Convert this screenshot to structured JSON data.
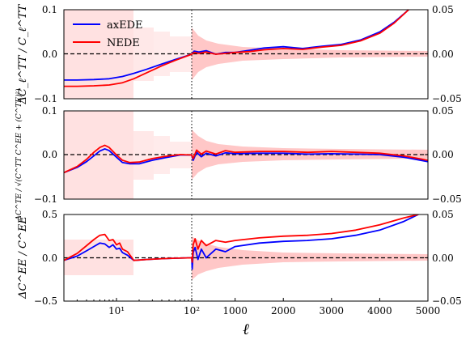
{
  "chart_data": {
    "type": "line",
    "x_axis": {
      "label": "ℓ",
      "log_region": {
        "range": [
          2,
          100
        ],
        "ticks": [
          {
            "value": 10,
            "label": "10¹"
          },
          {
            "value": 100,
            "label": "10²"
          }
        ]
      },
      "linear_region": {
        "range": [
          100,
          5000
        ],
        "ticks": [
          1000,
          2000,
          3000,
          4000,
          5000
        ]
      },
      "divider_at": 100
    },
    "legend": {
      "placement": "top-left",
      "entries": [
        {
          "name": "axEDE",
          "color": "#0000ff"
        },
        {
          "name": "NEDE",
          "color": "#ff0000"
        }
      ]
    },
    "colors": {
      "axEDE": "#0000ff",
      "NEDE": "#ff0000",
      "error_band": "#ffbdbd",
      "zero_line": "#000000"
    },
    "panels": [
      {
        "id": "TT",
        "ylabel": "ΔC_ℓ^TT / C_ℓ^TT",
        "ylim": [
          -0.1,
          0.1
        ],
        "yticks": [
          "0.1",
          "0.0",
          "−0.1"
        ],
        "right_ylim": [
          -0.05,
          0.05
        ],
        "right_yticks": [
          "0.05",
          "0.00",
          "−0.05"
        ],
        "series": [
          {
            "name": "axEDE",
            "x": [
              2,
              3,
              5,
              8,
              12,
              17,
              25,
              40,
              60,
              100,
              150,
              250,
              400,
              600,
              800,
              1000,
              1300,
              1600,
              2000,
              2400,
              2800,
              3200,
              3600,
              4000,
              4300,
              4600
            ],
            "y": [
              -0.058,
              -0.058,
              -0.057,
              -0.055,
              -0.05,
              -0.043,
              -0.034,
              -0.022,
              -0.012,
              0.0,
              0.007,
              0.005,
              0.008,
              0.0,
              0.004,
              0.004,
              0.009,
              0.014,
              0.017,
              0.013,
              0.018,
              0.022,
              0.032,
              0.05,
              0.072,
              0.1
            ]
          },
          {
            "name": "NEDE",
            "x": [
              2,
              3,
              5,
              8,
              12,
              17,
              25,
              40,
              60,
              100,
              150,
              250,
              400,
              600,
              800,
              1000,
              1300,
              1600,
              2000,
              2400,
              2800,
              3200,
              3600,
              4000,
              4300,
              4600
            ],
            "y": [
              -0.072,
              -0.072,
              -0.071,
              -0.069,
              -0.064,
              -0.055,
              -0.042,
              -0.026,
              -0.014,
              0.0,
              0.004,
              0.002,
              0.005,
              0.0,
              0.002,
              0.004,
              0.006,
              0.01,
              0.013,
              0.011,
              0.016,
              0.02,
              0.03,
              0.047,
              0.07,
              0.1
            ]
          }
        ]
      },
      {
        "id": "TE",
        "ylabel": "ΔC^TE / √(C^TT C^EE + (C^TE)²)",
        "ylim": [
          -0.1,
          0.1
        ],
        "yticks": [
          "0.1",
          "0.0",
          "−0.1"
        ],
        "right_ylim": [
          -0.05,
          0.05
        ],
        "right_yticks": [
          "0.05",
          "0.00",
          "−0.05"
        ],
        "series": [
          {
            "name": "axEDE",
            "x": [
              2,
              3,
              4,
              5,
              6,
              7,
              8,
              10,
              12,
              15,
              20,
              30,
              45,
              70,
              100,
              130,
              200,
              300,
              400,
              600,
              800,
              1000,
              1500,
              2000,
              2500,
              3000,
              3500,
              4000,
              4500,
              5000
            ],
            "y": [
              -0.04,
              -0.028,
              -0.015,
              -0.002,
              0.009,
              0.014,
              0.01,
              -0.005,
              -0.017,
              -0.02,
              -0.02,
              -0.012,
              -0.006,
              0.0,
              0.0,
              -0.012,
              0.006,
              -0.004,
              0.004,
              -0.002,
              0.005,
              0.003,
              0.004,
              0.004,
              0.002,
              0.003,
              0.002,
              0.001,
              -0.005,
              -0.015
            ]
          },
          {
            "name": "NEDE",
            "x": [
              2,
              3,
              4,
              5,
              6,
              7,
              8,
              10,
              12,
              15,
              20,
              30,
              45,
              70,
              100,
              130,
              200,
              300,
              400,
              600,
              800,
              1000,
              1500,
              2000,
              2500,
              3000,
              3500,
              4000,
              4500,
              5000
            ],
            "y": [
              -0.04,
              -0.026,
              -0.01,
              0.006,
              0.017,
              0.022,
              0.017,
              0.0,
              -0.012,
              -0.017,
              -0.016,
              -0.008,
              -0.003,
              0.001,
              0.0,
              -0.008,
              0.011,
              0.002,
              0.009,
              0.002,
              0.01,
              0.006,
              0.008,
              0.008,
              0.006,
              0.008,
              0.006,
              0.004,
              -0.002,
              -0.012
            ]
          }
        ]
      },
      {
        "id": "EE",
        "ylabel": "ΔC^EE / C^EE",
        "ylim": [
          -0.5,
          0.5
        ],
        "yticks": [
          "0.5",
          "0.0",
          "−0.5"
        ],
        "right_ylim": [
          -0.05,
          0.05
        ],
        "right_yticks": [
          "0.05",
          "0.00",
          "−0.05"
        ],
        "series": [
          {
            "name": "axEDE",
            "x": [
              2,
              3,
              4,
              5,
              6,
              7,
              8,
              9,
              10,
              11,
              12,
              14,
              17,
              25,
              40,
              60,
              100,
              110,
              130,
              170,
              230,
              300,
              400,
              600,
              800,
              1000,
              1500,
              2000,
              2500,
              3000,
              3500,
              4000,
              4500,
              4800
            ],
            "y": [
              -0.03,
              0.02,
              0.08,
              0.13,
              0.17,
              0.16,
              0.12,
              0.15,
              0.1,
              0.11,
              0.06,
              0.03,
              -0.03,
              -0.02,
              -0.01,
              -0.005,
              0.0,
              -0.13,
              0.06,
              0.12,
              -0.02,
              0.1,
              0.0,
              0.1,
              0.07,
              0.13,
              0.17,
              0.19,
              0.2,
              0.22,
              0.26,
              0.32,
              0.42,
              0.5
            ]
          },
          {
            "name": "NEDE",
            "x": [
              2,
              3,
              4,
              5,
              6,
              7,
              8,
              9,
              10,
              11,
              12,
              14,
              17,
              25,
              40,
              60,
              100,
              110,
              130,
              170,
              230,
              300,
              400,
              600,
              800,
              1000,
              1500,
              2000,
              2500,
              3000,
              3500,
              4000,
              4500,
              4800
            ],
            "y": [
              -0.03,
              0.05,
              0.14,
              0.21,
              0.26,
              0.27,
              0.2,
              0.21,
              0.15,
              0.17,
              0.1,
              0.07,
              -0.03,
              -0.02,
              -0.01,
              -0.005,
              0.0,
              -0.05,
              0.15,
              0.22,
              0.1,
              0.2,
              0.14,
              0.2,
              0.18,
              0.2,
              0.23,
              0.25,
              0.26,
              0.28,
              0.32,
              0.38,
              0.46,
              0.5
            ]
          }
        ]
      }
    ]
  }
}
